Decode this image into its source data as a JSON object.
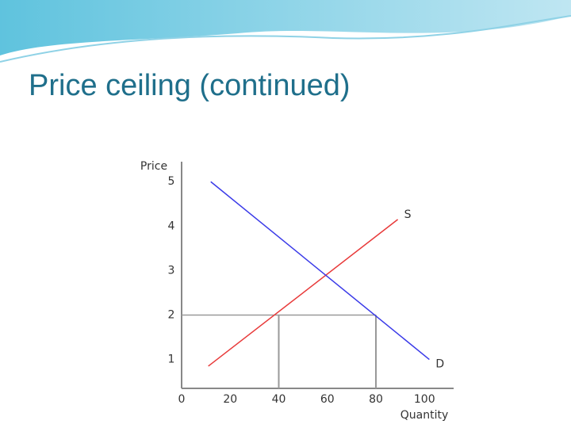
{
  "title": "Price ceiling (continued)",
  "chart_data": {
    "type": "line",
    "y_label": "Price",
    "x_label": "Quantity",
    "xlim": [
      0,
      112
    ],
    "ylim": [
      0.35,
      5.45
    ],
    "xticks": [
      0,
      20,
      40,
      60,
      80,
      100
    ],
    "yticks": [
      1,
      2,
      3,
      4,
      5
    ],
    "series": [
      {
        "name": "S",
        "color": "#e83a3a",
        "x": [
          11,
          89
        ],
        "values": [
          0.85,
          4.15
        ]
      },
      {
        "name": "D",
        "color": "#3a3ae8",
        "x": [
          12,
          102
        ],
        "values": [
          5,
          1
        ]
      }
    ],
    "ceiling": {
      "price": 2,
      "quantities": [
        40,
        80
      ],
      "color": "#999999"
    }
  }
}
